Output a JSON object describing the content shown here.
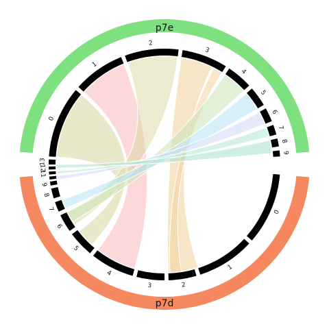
{
  "diagram": {
    "type": "chord",
    "groups": [
      {
        "name": "p7e",
        "color": "#7ee07e",
        "segments": [
          "0",
          "1",
          "2",
          "3",
          "4",
          "5",
          "6",
          "7",
          "8",
          "9"
        ]
      },
      {
        "name": "p7d",
        "color": "#f5885e",
        "segments": [
          "0",
          "1",
          "2",
          "3",
          "4",
          "5",
          "6",
          "7",
          "8",
          "9",
          "10",
          "11",
          "12",
          "13"
        ]
      }
    ],
    "ribbons": [
      {
        "from": "p7e 0",
        "to": "p7d 5",
        "color": "#d8d6a0"
      },
      {
        "from": "p7e 1",
        "to": "p7d 4",
        "color": "#fbb8b8"
      },
      {
        "from": "p7e 2",
        "to": "p7d 6",
        "color": "#ddd8a8"
      },
      {
        "from": "p7e 3",
        "to": "p7d 2",
        "color": "#f0cf9a"
      },
      {
        "from": "p7e 4",
        "to": "p7d 2",
        "color": "#f3d49e"
      },
      {
        "from": "p7e 5",
        "to": "p7d 7",
        "color": "#c8e4b4"
      },
      {
        "from": "p7e 6",
        "to": "p7d 8",
        "color": "#b4e2f2"
      },
      {
        "from": "p7e 7",
        "to": "p7d 11",
        "color": "#cdd8f8"
      },
      {
        "from": "p7e 8",
        "to": "p7d 12",
        "color": "#b2e8d2"
      },
      {
        "from": "p7e 9",
        "to": "p7d 13",
        "color": "#a8e2cc"
      }
    ]
  }
}
